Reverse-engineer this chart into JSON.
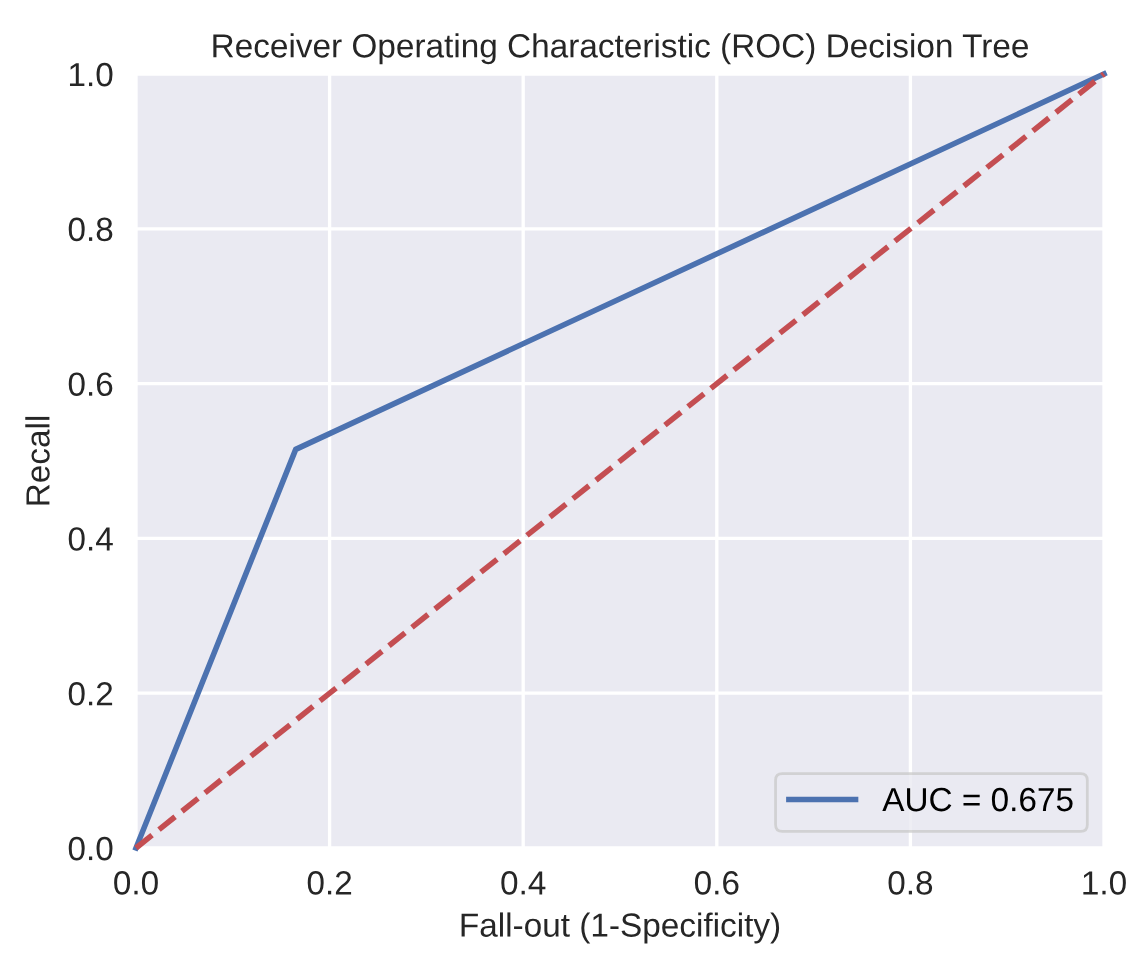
{
  "chart_data": {
    "type": "line",
    "title": "Receiver Operating Characteristic (ROC) Decision Tree",
    "xlabel": "Fall-out (1-Specificity)",
    "ylabel": "Recall",
    "series": [
      {
        "name": "AUC = 0.675",
        "color": "#4c72b0",
        "x": [
          0,
          0.165,
          1
        ],
        "values": [
          0,
          0.515,
          1
        ]
      },
      {
        "color": "#c44e52",
        "x": [
          0,
          1
        ],
        "values": [
          0,
          1
        ],
        "line_style": "dashed"
      }
    ],
    "xlim": [
      0,
      1
    ],
    "ylim": [
      0,
      1
    ],
    "xticks": [
      {
        "value": 0,
        "label": "0.0"
      },
      0.2,
      0.4,
      0.6,
      0.8,
      {
        "value": 1,
        "label": "1.0"
      }
    ],
    "yticks": [
      {
        "value": 0,
        "label": "0.0"
      },
      0.2,
      0.4,
      0.6,
      0.8,
      {
        "value": 1,
        "label": "1.0"
      }
    ],
    "grid": true,
    "legend": "bottom right"
  }
}
